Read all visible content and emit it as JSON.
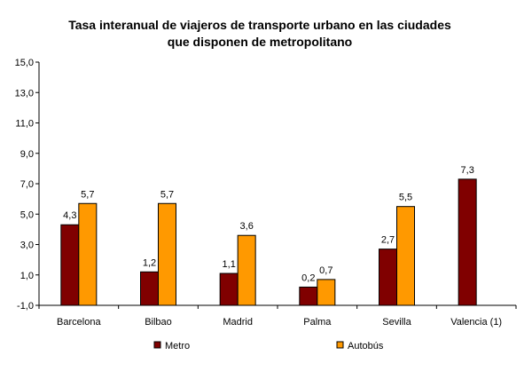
{
  "chart_data": {
    "type": "bar",
    "title_lines": [
      "Tasa interanual de viajeros de transporte urbano en las ciudades",
      "que disponen de metropolitano"
    ],
    "categories": [
      "Barcelona",
      "Bilbao",
      "Madrid",
      "Palma",
      "Sevilla",
      "Valencia (1)"
    ],
    "series": [
      {
        "name": "Metro",
        "color": "#800000",
        "values": [
          4.3,
          1.2,
          1.1,
          0.2,
          2.7,
          7.3
        ],
        "labels": [
          "4,3",
          "1,2",
          "1,1",
          "0,2",
          "2,7",
          "7,3"
        ]
      },
      {
        "name": "Autobús",
        "color": "#FF9900",
        "values": [
          5.7,
          5.7,
          3.6,
          0.7,
          5.5,
          null
        ],
        "labels": [
          "5,7",
          "5,7",
          "3,6",
          "0,7",
          "5,5",
          null
        ]
      }
    ],
    "y_ticks": [
      "15,0",
      "13,0",
      "11,0",
      "9,0",
      "7,0",
      "5,0",
      "3,0",
      "1,0",
      "-1,0"
    ],
    "ylim": [
      -1,
      15
    ],
    "grid": false,
    "legend_position": "bottom"
  }
}
